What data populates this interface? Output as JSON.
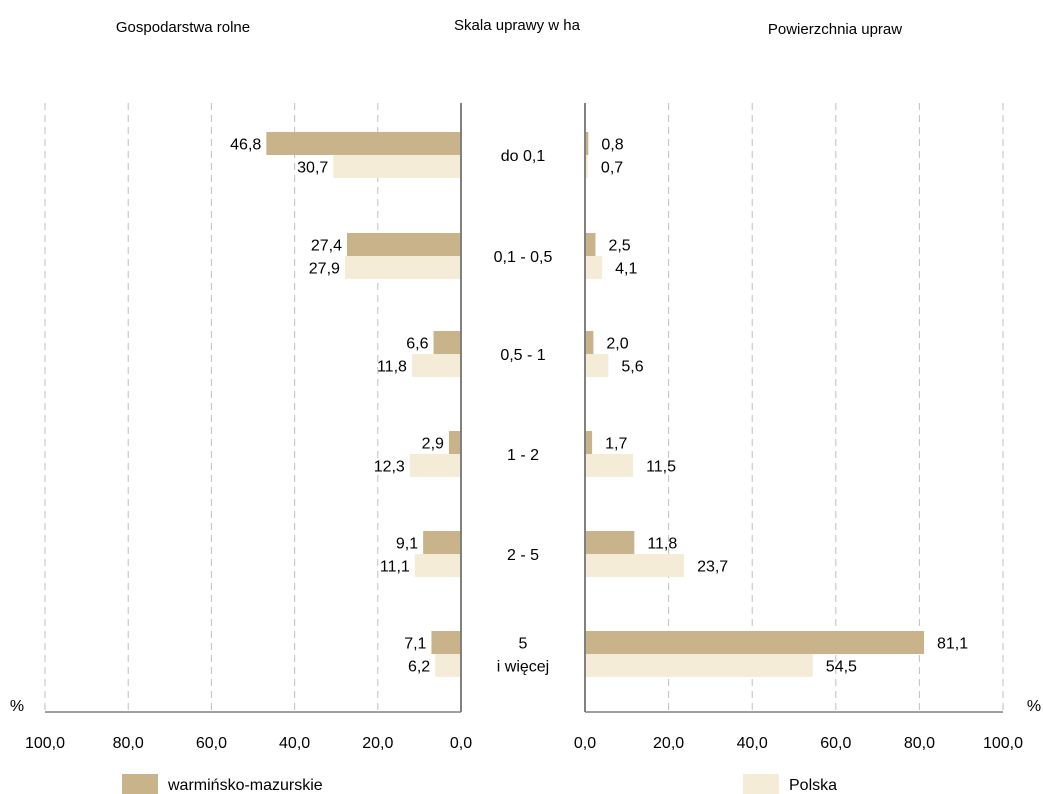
{
  "chart_data": {
    "type": "bar",
    "orientation": "horizontal",
    "layout": "back-to-back",
    "headers": {
      "left": "Gospodarstwa rolne",
      "center": "Skala uprawy w ha",
      "right": "Powierzchnia upraw"
    },
    "categories": [
      [
        "do 0,1"
      ],
      [
        "0,1 - 0,5"
      ],
      [
        "0,5 - 1"
      ],
      [
        "1 - 2"
      ],
      [
        "2 - 5"
      ],
      [
        "5",
        "i więcej"
      ]
    ],
    "series": [
      {
        "name": "warmińsko-mazurskie",
        "color": "#c9b38b",
        "left_values": [
          46.8,
          27.4,
          6.6,
          2.9,
          9.1,
          7.1
        ],
        "left_labels": [
          "46,8",
          "27,4",
          "6,6",
          "2,9",
          "9,1",
          "7,1"
        ],
        "right_values": [
          0.8,
          2.5,
          2.0,
          1.7,
          11.8,
          81.1
        ],
        "right_labels": [
          "0,8",
          "2,5",
          "2,0",
          "1,7",
          "11,8",
          "81,1"
        ]
      },
      {
        "name": "Polska",
        "color": "#f4ecd6",
        "left_values": [
          30.7,
          27.9,
          11.8,
          12.3,
          11.1,
          6.2
        ],
        "left_labels": [
          "30,7",
          "27,9",
          "11,8",
          "12,3",
          "11,1",
          "6,2"
        ],
        "right_values": [
          0.7,
          4.1,
          5.6,
          11.5,
          23.7,
          54.5
        ],
        "right_labels": [
          "0,7",
          "4,1",
          "5,6",
          "11,5",
          "23,7",
          "54,5"
        ]
      }
    ],
    "unit_label": "%",
    "left_axis": {
      "range": [
        100,
        0
      ],
      "ticks": [
        100,
        80,
        60,
        40,
        20,
        0
      ],
      "tick_labels": [
        "100,0",
        "80,0",
        "60,0",
        "40,0",
        "20,0",
        "0,0"
      ]
    },
    "right_axis": {
      "range": [
        0,
        100
      ],
      "ticks": [
        0,
        20,
        40,
        60,
        80,
        100
      ],
      "tick_labels": [
        "0,0",
        "20,0",
        "40,0",
        "60,0",
        "80,0",
        "100,0"
      ]
    },
    "grid": "vertical dashed"
  }
}
